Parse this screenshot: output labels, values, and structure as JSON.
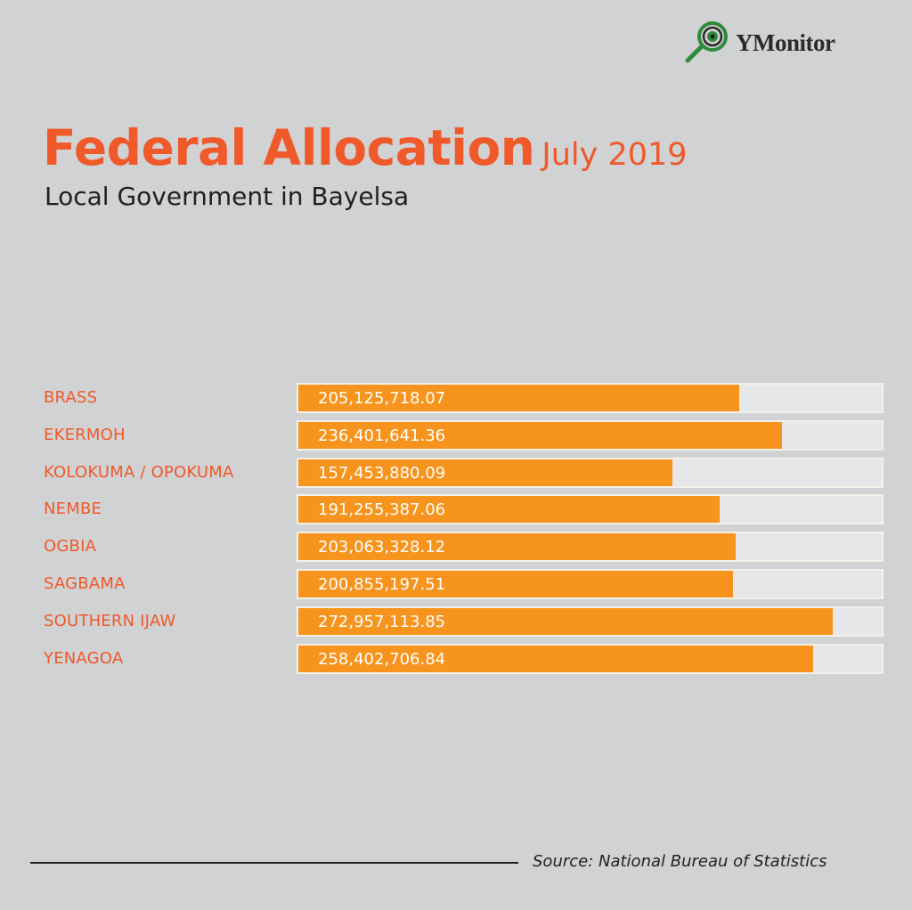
{
  "logo": {
    "text": "YMonitor",
    "icon": "magnifier-eye-icon",
    "color": "#2e8b3a"
  },
  "chart_data": {
    "type": "bar",
    "orientation": "horizontal",
    "title": "Federal Allocation",
    "title_suffix": "July 2019",
    "subtitle": "Local Government in Bayelsa",
    "categories": [
      "BRASS",
      "EKERMOH",
      "KOLOKUMA / OPOKUMA",
      "NEMBE",
      "OGBIA",
      "SAGBAMA",
      "SOUTHERN IJAW",
      "YENAGOA"
    ],
    "values": [
      205125718.07,
      236401641.36,
      157453880.09,
      191255387.06,
      203063328.12,
      200855197.51,
      272957113.85,
      258402706.84
    ],
    "value_labels": [
      "205,125,718.07",
      "236,401,641.36",
      "157,453,880.09",
      "191,255,387.06",
      "203,063,328.12",
      "200,855,197.51",
      "272,957,113.85",
      "258,402,706.84"
    ],
    "bar_color": "#f7941d",
    "label_color": "#f0592a",
    "grid": false,
    "source": "Source: National Bureau of Statistics"
  }
}
